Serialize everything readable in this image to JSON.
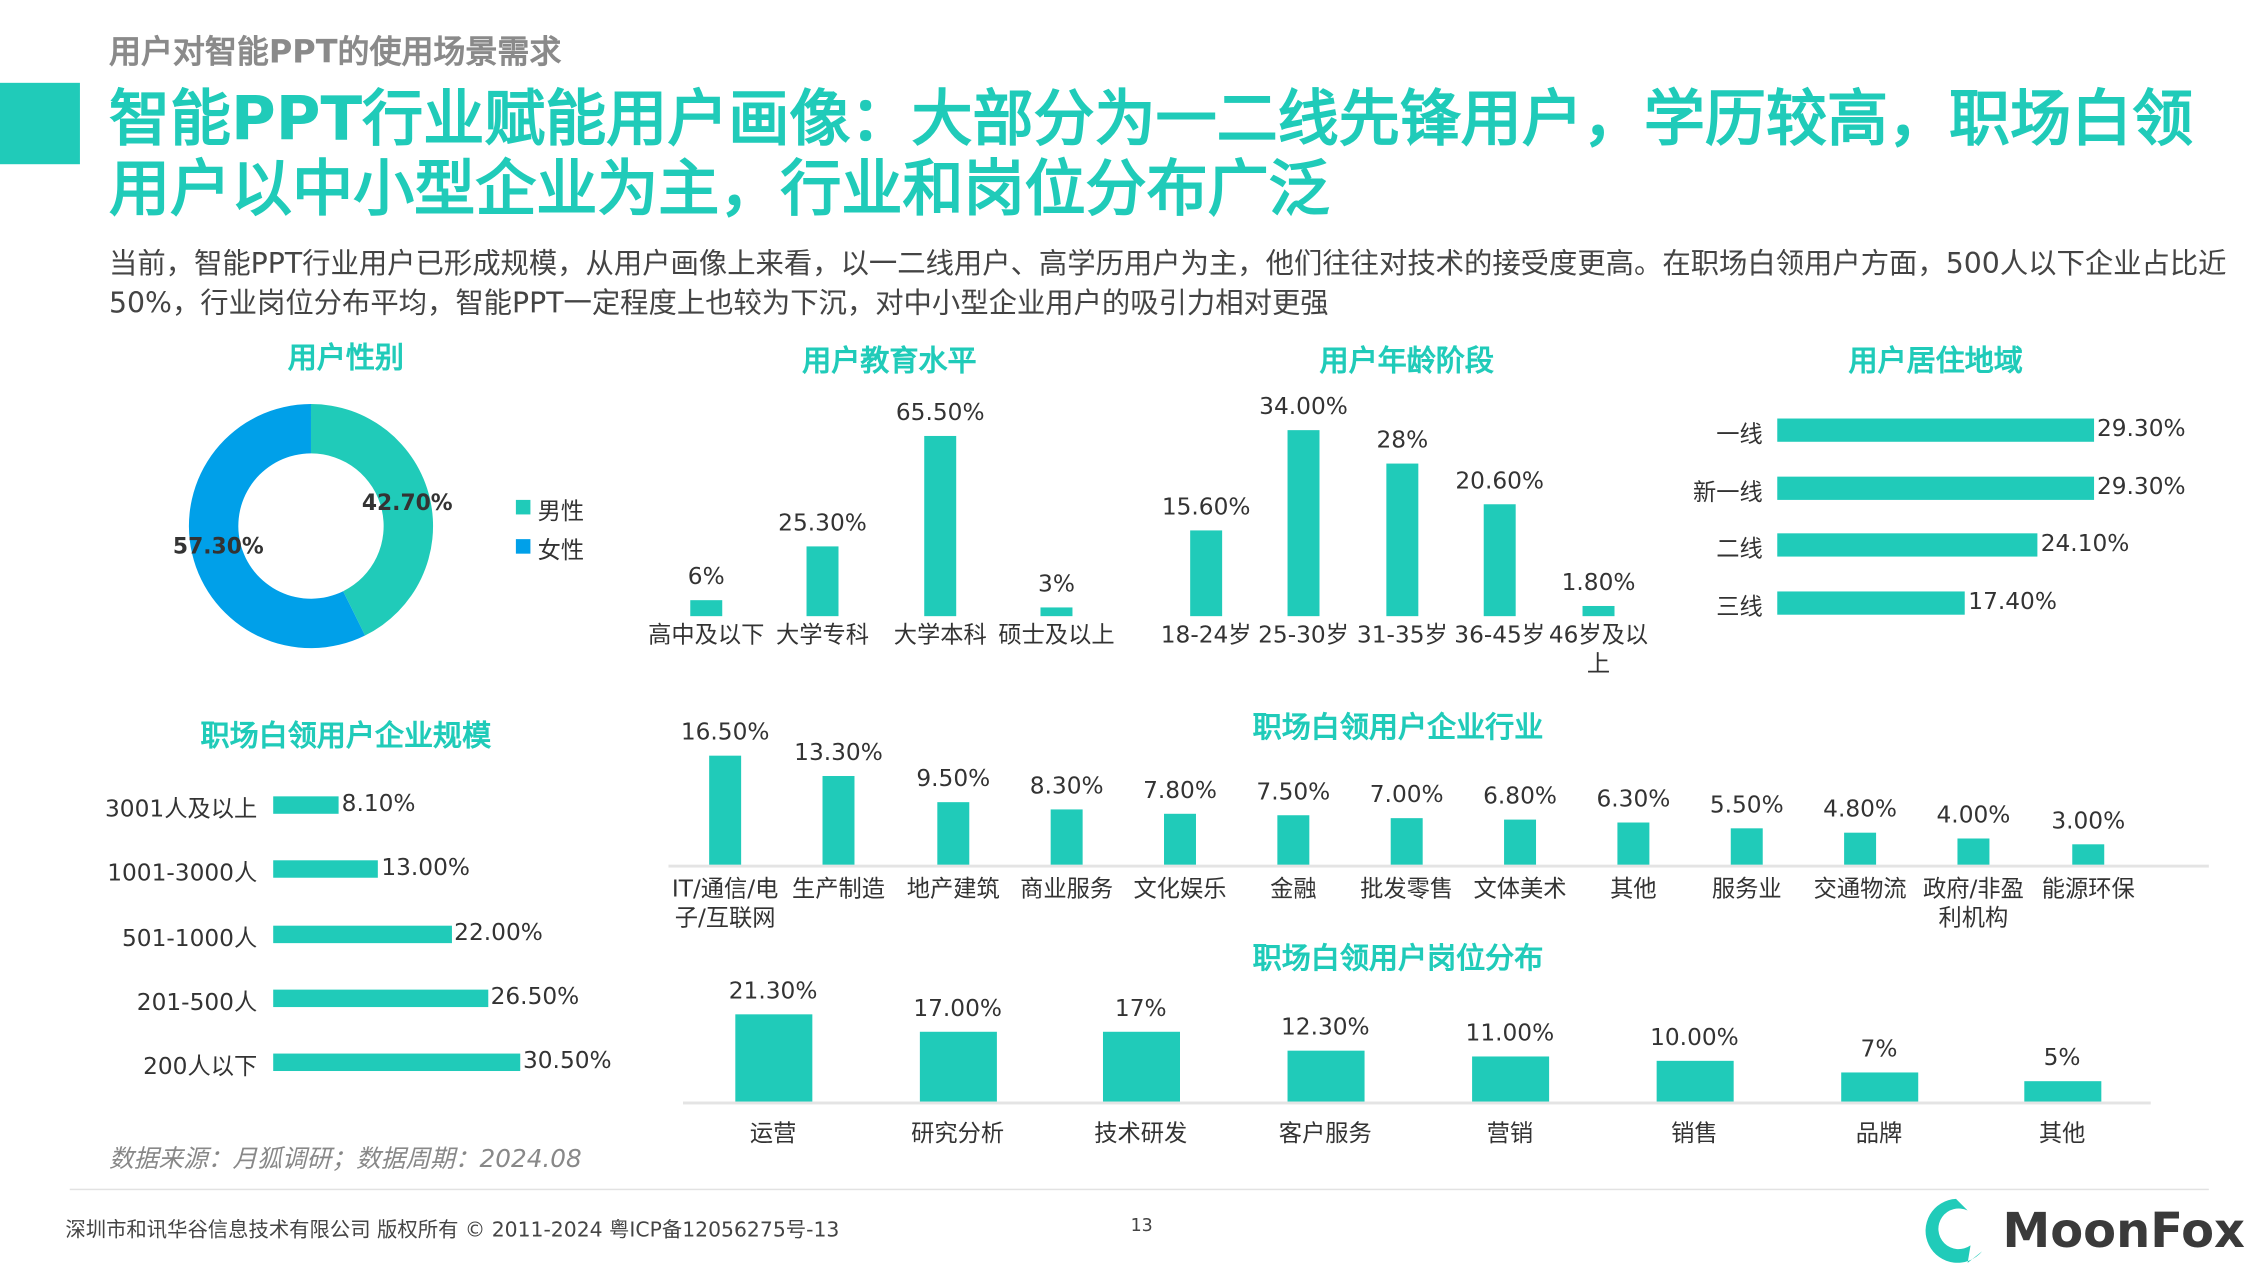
{
  "header": {
    "section": "用户对智能PPT的使用场景需求",
    "title": "智能PPT行业赋能用户画像：大部分为一二线先锋用户，学历较高，职场白领用户以中小型企业为主，行业和岗位分布广泛",
    "description": "当前，智能PPT行业用户已形成规模，从用户画像上来看，以一二线用户、高学历用户为主，他们往往对技术的接受度更高。在职场白领用户方面，500人以下企业占比近50%，行业岗位分布平均，智能PPT一定程度上也较为下沉，对中小型企业用户的吸引力相对更强"
  },
  "colors": {
    "accent": "#20cbb9",
    "female": "#00a0e9"
  },
  "chart_data": [
    {
      "type": "pie",
      "donut": true,
      "title": "用户性别",
      "categories": [
        "男性",
        "女性"
      ],
      "values": [
        42.7,
        57.3
      ],
      "labels": [
        "42.70%",
        "57.30%"
      ],
      "colors": [
        "#20cbb9",
        "#00a0e9"
      ],
      "legend": "right"
    },
    {
      "type": "bar",
      "title": "用户教育水平",
      "categories": [
        "高中及以下",
        "大学专科",
        "大学本科",
        "硕士及以上"
      ],
      "values": [
        6,
        25.3,
        65.5,
        3
      ],
      "labels": [
        "6%",
        "25.30%",
        "65.50%",
        "3%"
      ]
    },
    {
      "type": "bar",
      "title": "用户年龄阶段",
      "categories": [
        "18-24岁",
        "25-30岁",
        "31-35岁",
        "36-45岁",
        "46岁及以上"
      ],
      "values": [
        15.6,
        34,
        28,
        20.6,
        1.8
      ],
      "labels": [
        "15.60%",
        "34.00%",
        "28%",
        "20.60%",
        "1.80%"
      ]
    },
    {
      "type": "bar",
      "orientation": "horizontal",
      "title": "用户居住地域",
      "categories": [
        "一线",
        "新一线",
        "二线",
        "三线"
      ],
      "values": [
        29.3,
        29.3,
        24.1,
        17.4
      ],
      "labels": [
        "29.30%",
        "29.30%",
        "24.10%",
        "17.40%"
      ]
    },
    {
      "type": "bar",
      "orientation": "horizontal",
      "title": "职场白领用户企业规模",
      "categories": [
        "3001人及以上",
        "1001-3000人",
        "501-1000人",
        "201-500人",
        "200人以下"
      ],
      "values": [
        8.1,
        13,
        22,
        26.5,
        30.5
      ],
      "labels": [
        "8.10%",
        "13.00%",
        "22.00%",
        "26.50%",
        "30.50%"
      ]
    },
    {
      "type": "bar",
      "title": "职场白领用户企业行业",
      "categories": [
        "IT/通信/电子/互联网",
        "生产制造",
        "地产建筑",
        "商业服务",
        "文化娱乐",
        "金融",
        "批发零售",
        "文体美术",
        "其他",
        "服务业",
        "交通物流",
        "政府/非盈利机构",
        "能源环保"
      ],
      "values": [
        16.5,
        13.3,
        9.5,
        8.3,
        7.8,
        7.5,
        7,
        6.8,
        6.3,
        5.5,
        4.8,
        4,
        3
      ],
      "labels": [
        "16.50%",
        "13.30%",
        "9.50%",
        "8.30%",
        "7.80%",
        "7.50%",
        "7.00%",
        "6.80%",
        "6.30%",
        "5.50%",
        "4.80%",
        "4.00%",
        "3.00%"
      ]
    },
    {
      "type": "bar",
      "title": "职场白领用户岗位分布",
      "categories": [
        "运营",
        "研究分析",
        "技术研发",
        "客户服务",
        "营销",
        "销售",
        "品牌",
        "其他"
      ],
      "values": [
        21.3,
        17,
        17,
        12.3,
        11,
        10,
        7,
        5
      ],
      "labels": [
        "21.30%",
        "17.00%",
        "17%",
        "12.30%",
        "11.00%",
        "10.00%",
        "7%",
        "5%"
      ]
    }
  ],
  "source": "数据来源：月狐调研；数据周期：2024.08",
  "footer": {
    "copyright": "深圳市和讯华谷信息技术有限公司 版权所有 © 2011-2024 粤ICP备12056275号-13",
    "page": "13",
    "logo": "MoonFox"
  }
}
